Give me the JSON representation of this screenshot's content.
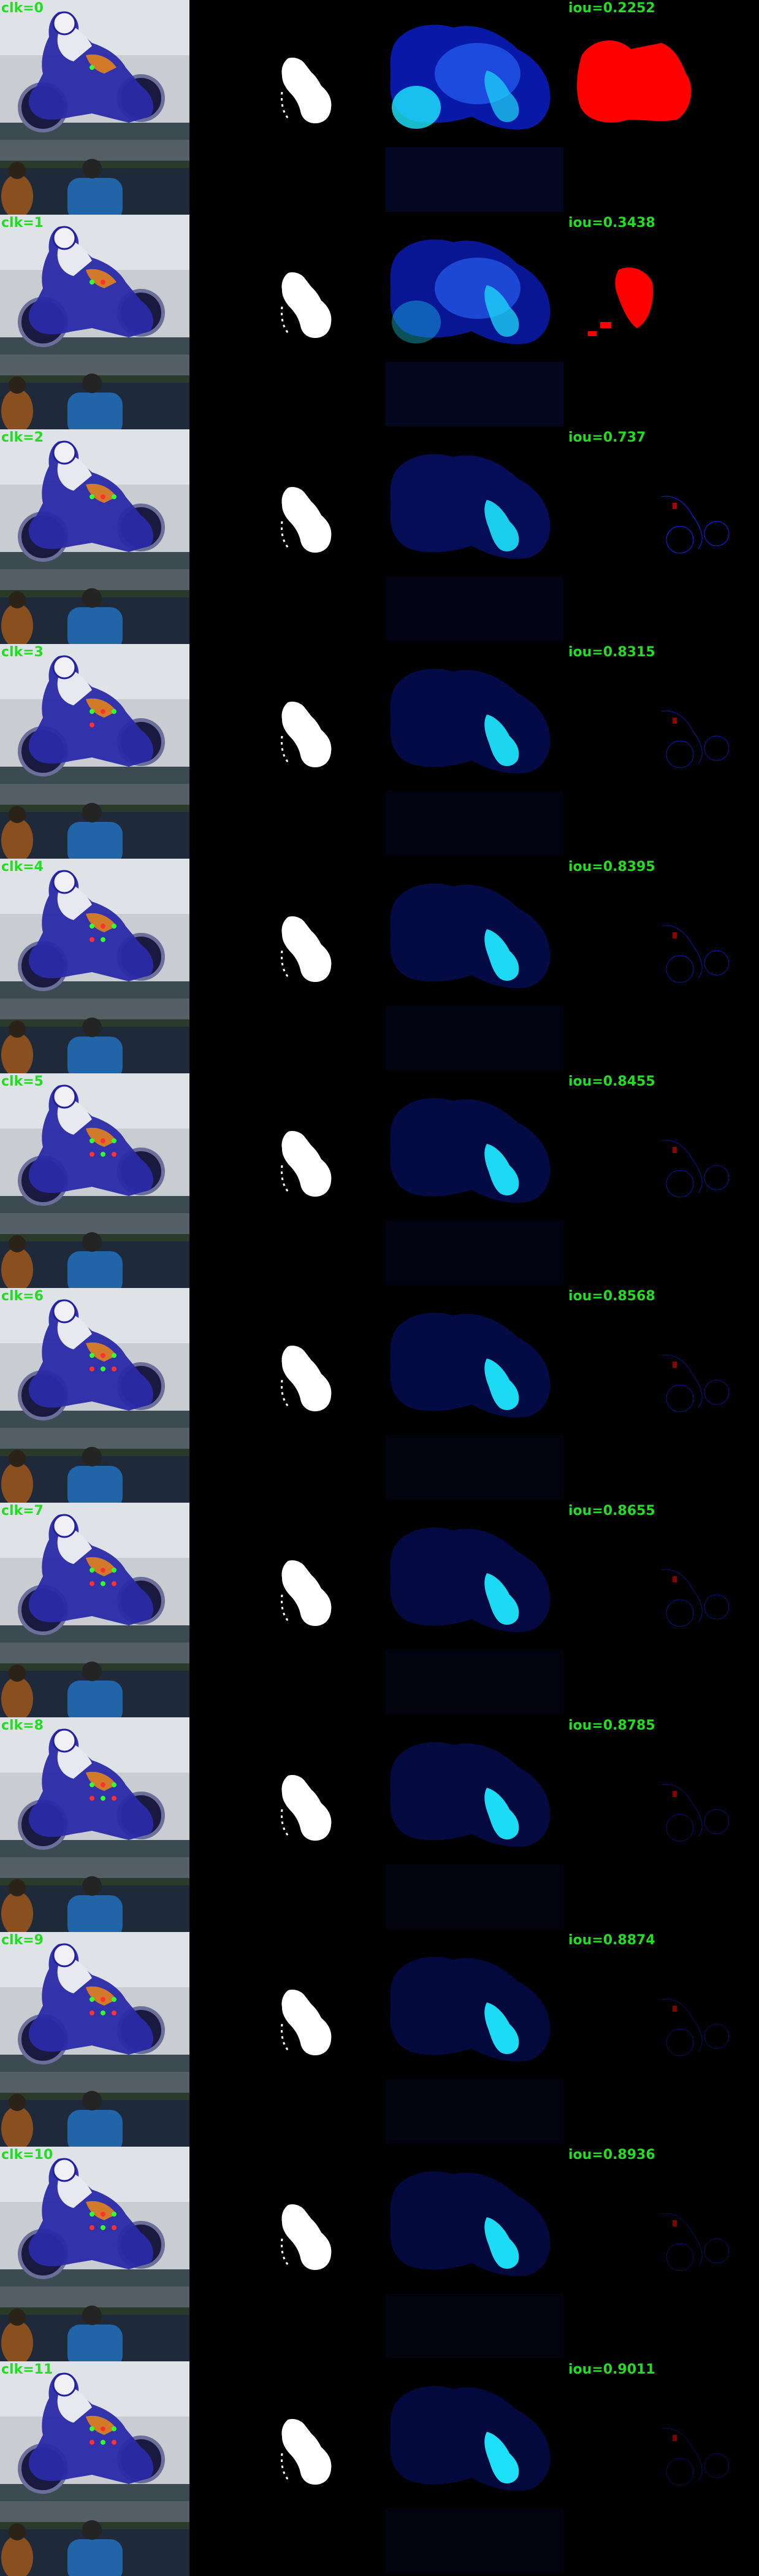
{
  "colors": {
    "background": "#000000",
    "label_text": "#22dd22",
    "target_mask": "#ffffff",
    "probability_heat": "#1ee8ff",
    "probability_base": "#0a1ab0",
    "false_negative": "#ff0000",
    "false_positive": "#1020ff"
  },
  "columns": [
    "input-image-with-clicks",
    "ground-truth-mask",
    "probability-map",
    "error-map"
  ],
  "rows": [
    {
      "clicks": "clk=0",
      "iou": "iou=0.2252",
      "iou_value": 0.2252
    },
    {
      "clicks": "clk=1",
      "iou": "iou=0.3438",
      "iou_value": 0.3438
    },
    {
      "clicks": "clk=2",
      "iou": "iou=0.737",
      "iou_value": 0.737
    },
    {
      "clicks": "clk=3",
      "iou": "iou=0.8315",
      "iou_value": 0.8315
    },
    {
      "clicks": "clk=4",
      "iou": "iou=0.8395",
      "iou_value": 0.8395
    },
    {
      "clicks": "clk=5",
      "iou": "iou=0.8455",
      "iou_value": 0.8455
    },
    {
      "clicks": "clk=6",
      "iou": "iou=0.8568",
      "iou_value": 0.8568
    },
    {
      "clicks": "clk=7",
      "iou": "iou=0.8655",
      "iou_value": 0.8655
    },
    {
      "clicks": "clk=8",
      "iou": "iou=0.8785",
      "iou_value": 0.8785
    },
    {
      "clicks": "clk=9",
      "iou": "iou=0.8874",
      "iou_value": 0.8874
    },
    {
      "clicks": "clk=10",
      "iou": "iou=0.8936",
      "iou_value": 0.8936
    },
    {
      "clicks": "clk=11",
      "iou": "iou=0.9011",
      "iou_value": 0.9011
    }
  ]
}
